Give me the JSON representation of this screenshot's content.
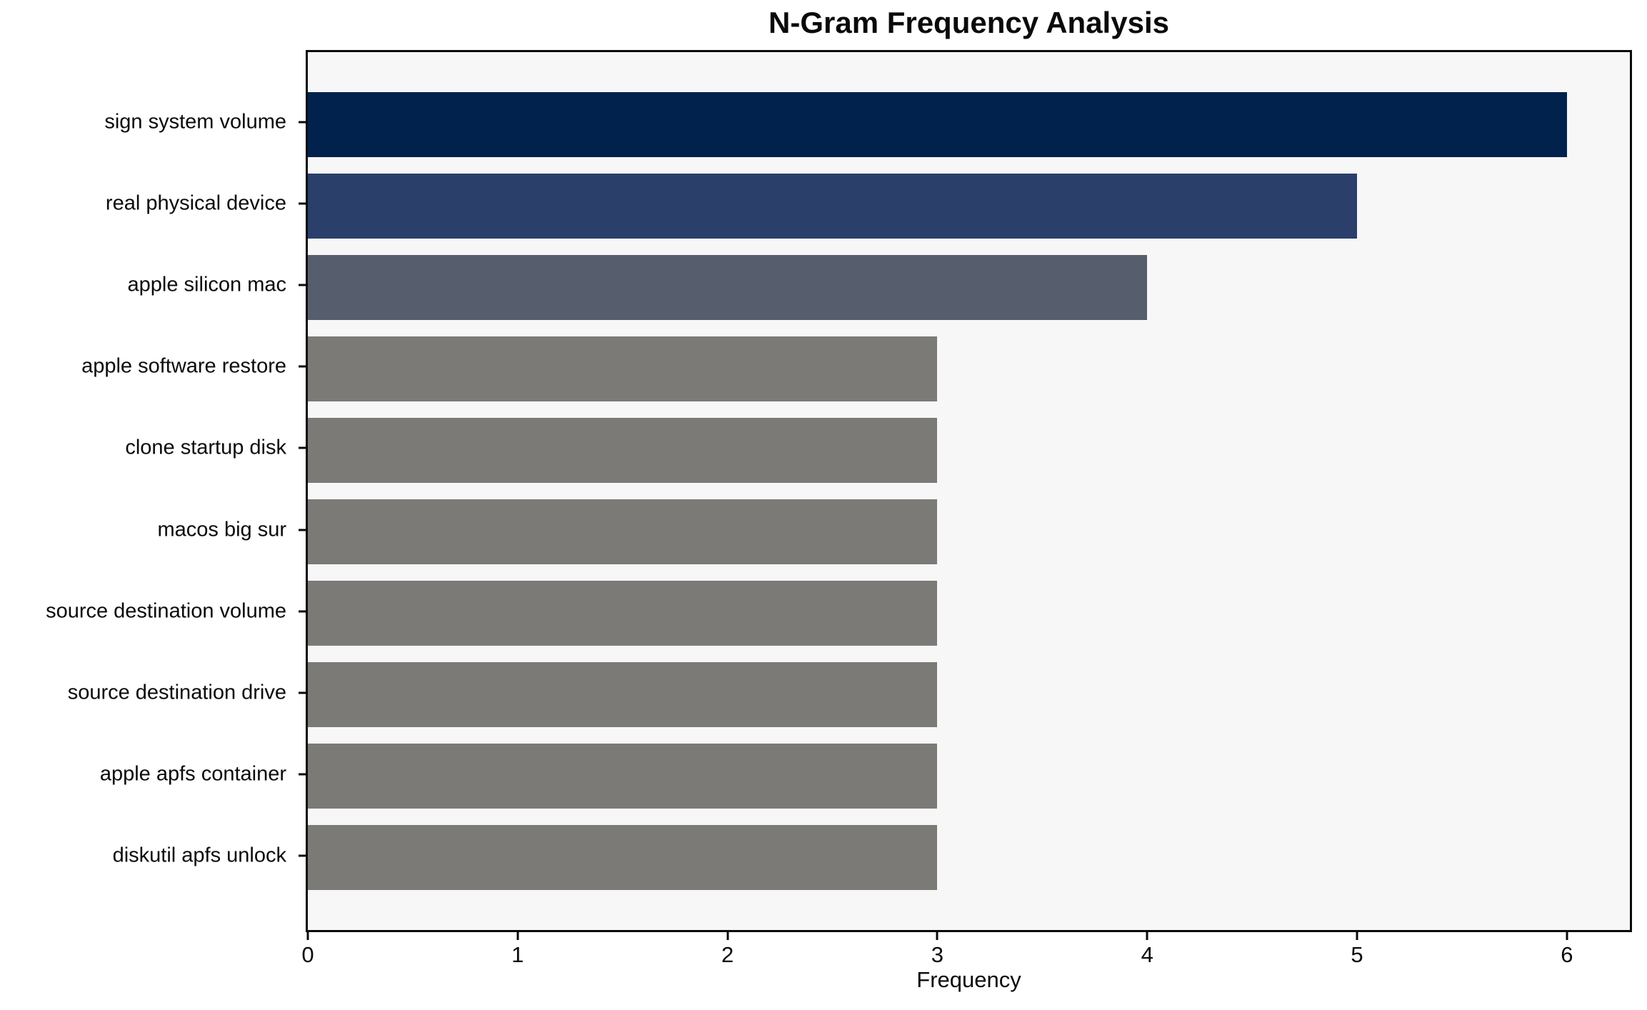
{
  "chart_data": {
    "type": "bar",
    "orientation": "horizontal",
    "title": "N-Gram Frequency Analysis",
    "xlabel": "Frequency",
    "ylabel": "",
    "categories": [
      "sign system volume",
      "real physical device",
      "apple silicon mac",
      "apple software restore",
      "clone startup disk",
      "macos big sur",
      "source destination volume",
      "source destination drive",
      "apple apfs container",
      "diskutil apfs unlock"
    ],
    "values": [
      6,
      5,
      4,
      3,
      3,
      3,
      3,
      3,
      3,
      3
    ],
    "bar_colors": [
      "#02224e",
      "#2b3f6b",
      "#565d6d",
      "#7b7a76",
      "#7b7a76",
      "#7b7a76",
      "#7b7a76",
      "#7b7a76",
      "#7b7a76",
      "#7b7a76"
    ],
    "xticks": [
      0,
      1,
      2,
      3,
      4,
      5,
      6
    ],
    "xlim": [
      0,
      6.3
    ],
    "grid": false,
    "legend": null,
    "plot_bg_color": "#f7f7f7",
    "frame_color": "#0a0a0a"
  }
}
